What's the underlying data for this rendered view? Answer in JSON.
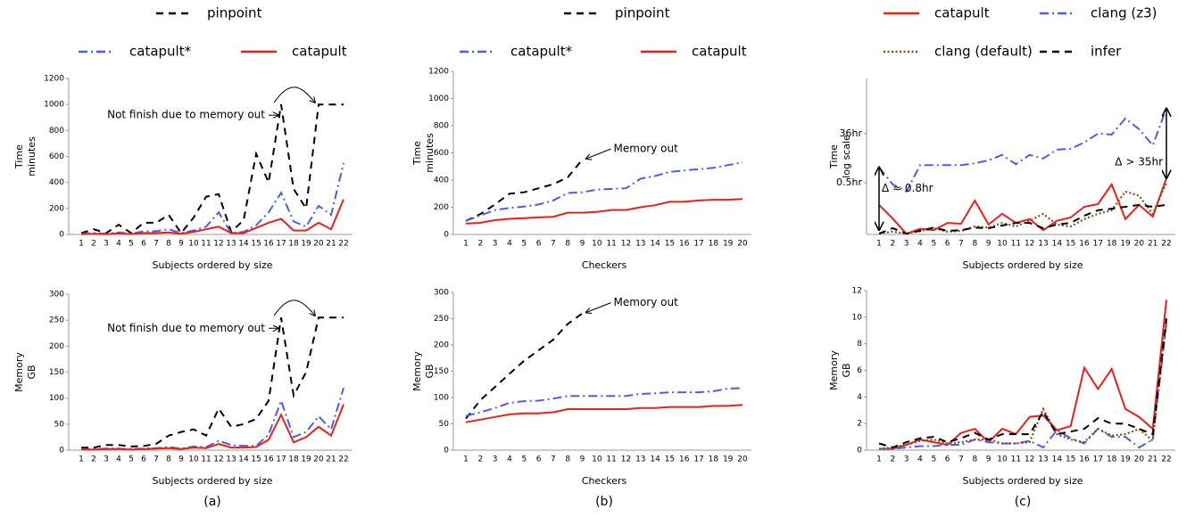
{
  "chart_data": [
    {
      "type": "line",
      "xlabel": "Subjects ordered by size",
      "ylabel": [
        "Time",
        "minutes"
      ],
      "categories": [
        1,
        2,
        3,
        4,
        5,
        6,
        7,
        8,
        9,
        10,
        11,
        12,
        13,
        14,
        15,
        16,
        17,
        18,
        19,
        20,
        21,
        22
      ],
      "ylim": [
        0,
        1200
      ],
      "yticks": [
        0,
        200,
        400,
        600,
        800,
        1000,
        1200
      ],
      "legend": true,
      "annotations": [
        "Not finish due to memory out"
      ],
      "series": [
        {
          "name": "pinpoint",
          "color": "#000000",
          "dash": "dashed",
          "values": [
            10,
            40,
            10,
            75,
            10,
            90,
            90,
            150,
            10,
            130,
            290,
            310,
            20,
            110,
            620,
            400,
            1000,
            350,
            200,
            1000,
            1000,
            1000
          ]
        },
        {
          "name": "catapult*",
          "color": "#4a5ee8",
          "dash": "dashdot",
          "values": [
            5,
            10,
            5,
            15,
            5,
            25,
            25,
            40,
            10,
            30,
            60,
            170,
            10,
            20,
            70,
            170,
            320,
            100,
            60,
            220,
            150,
            550
          ]
        },
        {
          "name": "catapult",
          "color": "#e8201a",
          "dash": "solid",
          "values": [
            2,
            5,
            2,
            8,
            3,
            10,
            10,
            15,
            5,
            20,
            40,
            60,
            10,
            10,
            50,
            90,
            120,
            30,
            30,
            90,
            40,
            270
          ]
        }
      ]
    },
    {
      "type": "line",
      "xlabel": "Subjects ordered by size",
      "ylabel": [
        "Memory",
        "GB"
      ],
      "caption": "(a)",
      "categories": [
        1,
        2,
        3,
        4,
        5,
        6,
        7,
        8,
        9,
        10,
        11,
        12,
        13,
        14,
        15,
        16,
        17,
        18,
        19,
        20,
        21,
        22
      ],
      "ylim": [
        0,
        300
      ],
      "yticks": [
        0,
        50,
        100,
        150,
        200,
        250,
        300
      ],
      "annotations": [
        "Not finish due to memory out"
      ],
      "series": [
        {
          "color": "#000000",
          "dash": "dashed",
          "values": [
            5,
            5,
            10,
            10,
            7,
            8,
            12,
            28,
            35,
            40,
            28,
            80,
            45,
            50,
            60,
            95,
            255,
            105,
            150,
            255,
            255,
            255
          ]
        },
        {
          "color": "#4a5ee8",
          "dash": "dashdot",
          "values": [
            2,
            2,
            3,
            3,
            2,
            3,
            4,
            6,
            3,
            7,
            6,
            18,
            10,
            8,
            8,
            30,
            95,
            25,
            35,
            65,
            40,
            120
          ]
        },
        {
          "color": "#e8201a",
          "dash": "solid",
          "values": [
            1,
            1,
            2,
            2,
            1,
            2,
            3,
            4,
            2,
            5,
            4,
            12,
            5,
            5,
            6,
            20,
            68,
            15,
            25,
            45,
            28,
            88
          ]
        }
      ]
    },
    {
      "type": "line",
      "xlabel": "Checkers",
      "ylabel": [
        "Time",
        "minutes"
      ],
      "categories": [
        1,
        2,
        3,
        4,
        5,
        6,
        7,
        8,
        9,
        10,
        11,
        12,
        13,
        14,
        15,
        16,
        17,
        18,
        19,
        20
      ],
      "ylim": [
        0,
        1200
      ],
      "yticks": [
        0,
        200,
        400,
        600,
        800,
        1000,
        1200
      ],
      "legend": true,
      "annotations": [
        "Memory out"
      ],
      "series": [
        {
          "name": "pinpoint",
          "color": "#000000",
          "dash": "dashed",
          "values": [
            100,
            150,
            220,
            300,
            310,
            340,
            370,
            420,
            550,
            null,
            null,
            null,
            null,
            null,
            null,
            null,
            null,
            null,
            null,
            null
          ]
        },
        {
          "name": "catapult*",
          "color": "#4a5ee8",
          "dash": "dashdot",
          "values": [
            100,
            140,
            180,
            195,
            205,
            220,
            250,
            305,
            310,
            330,
            335,
            340,
            410,
            430,
            460,
            470,
            480,
            490,
            510,
            530
          ]
        },
        {
          "name": "catapult",
          "color": "#e8201a",
          "dash": "solid",
          "values": [
            80,
            85,
            105,
            115,
            120,
            125,
            130,
            160,
            160,
            165,
            180,
            180,
            200,
            215,
            240,
            240,
            250,
            255,
            255,
            260
          ]
        }
      ]
    },
    {
      "type": "line",
      "xlabel": "Checkers",
      "ylabel": [
        "Memory",
        "GB"
      ],
      "caption": "(b)",
      "categories": [
        1,
        2,
        3,
        4,
        5,
        6,
        7,
        8,
        9,
        10,
        11,
        12,
        13,
        14,
        15,
        16,
        17,
        18,
        19,
        20
      ],
      "ylim": [
        0,
        300
      ],
      "yticks": [
        0,
        50,
        100,
        150,
        200,
        250,
        300
      ],
      "annotations": [
        "Memory out"
      ],
      "series": [
        {
          "color": "#000000",
          "dash": "dashed",
          "values": [
            60,
            95,
            120,
            145,
            170,
            190,
            210,
            240,
            260,
            null,
            null,
            null,
            null,
            null,
            null,
            null,
            null,
            null,
            null,
            null
          ]
        },
        {
          "color": "#4a5ee8",
          "dash": "dashdot",
          "values": [
            65,
            72,
            80,
            90,
            93,
            94,
            98,
            103,
            103,
            103,
            103,
            103,
            107,
            108,
            110,
            110,
            110,
            112,
            117,
            118
          ]
        },
        {
          "color": "#e8201a",
          "dash": "solid",
          "values": [
            53,
            58,
            63,
            68,
            70,
            70,
            72,
            78,
            78,
            78,
            78,
            78,
            80,
            80,
            82,
            82,
            82,
            84,
            84,
            86
          ]
        }
      ]
    },
    {
      "type": "line",
      "xlabel": "Subjects ordered by size",
      "ylabel": [
        "Time",
        "log scale"
      ],
      "log": true,
      "categories": [
        1,
        2,
        3,
        4,
        5,
        6,
        7,
        8,
        9,
        10,
        11,
        12,
        13,
        14,
        15,
        16,
        17,
        18,
        19,
        20,
        21,
        22
      ],
      "ylim": [
        0.0055,
        4400
      ],
      "yticks": [
        {
          "value": 0.5,
          "label": "0.5hr"
        },
        {
          "value": 36,
          "label": "36hr"
        }
      ],
      "legend": true,
      "annotations": [
        "Δ ≈ 0.8hr",
        "Δ > 35hr"
      ],
      "series": [
        {
          "name": "catapult",
          "color": "#e8201a",
          "dash": "solid",
          "values": [
            0.072,
            0.022,
            0.0058,
            0.009,
            0.008,
            0.015,
            0.014,
            0.105,
            0.013,
            0.033,
            0.015,
            0.021,
            0.008,
            0.018,
            0.024,
            0.061,
            0.077,
            0.43,
            0.021,
            0.072,
            0.026,
            0.74
          ]
        },
        {
          "name": "clang (z3)",
          "color": "#4a5ee8",
          "dash": "dashdot",
          "values": [
            1.9,
            0.43,
            0.23,
            2.3,
            2.3,
            2.3,
            2.3,
            2.7,
            3.5,
            5.6,
            2.5,
            5.6,
            4.1,
            8.9,
            9.6,
            16.7,
            36,
            33,
            135,
            53,
            13,
            320
          ]
        },
        {
          "name": "clang (default)",
          "color": "#8b4a1c",
          "dash": "dotted",
          "values": [
            0.0059,
            0.007,
            0.0059,
            0.0075,
            0.0095,
            0.007,
            0.0075,
            0.011,
            0.01,
            0.015,
            0.011,
            0.018,
            0.033,
            0.013,
            0.011,
            0.021,
            0.033,
            0.045,
            0.23,
            0.16,
            0.033,
            0.5
          ]
        },
        {
          "name": "infer",
          "color": "#000000",
          "dash": "dashed",
          "values": [
            0.0059,
            0.0095,
            0.0059,
            0.0075,
            0.01,
            0.0075,
            0.008,
            0.01,
            0.0095,
            0.012,
            0.015,
            0.015,
            0.0095,
            0.013,
            0.015,
            0.028,
            0.045,
            0.052,
            0.061,
            0.072,
            0.061,
            0.072
          ]
        }
      ]
    },
    {
      "type": "line",
      "xlabel": "Subjects ordered by size",
      "ylabel": [
        "Memory",
        "GB"
      ],
      "caption": "(c)",
      "categories": [
        1,
        2,
        3,
        4,
        5,
        6,
        7,
        8,
        9,
        10,
        11,
        12,
        13,
        14,
        15,
        16,
        17,
        18,
        19,
        20,
        21,
        22
      ],
      "ylim": [
        0,
        12
      ],
      "yticks": [
        0,
        2,
        4,
        6,
        8,
        10,
        12
      ],
      "series": [
        {
          "color": "#e8201a",
          "dash": "solid",
          "values": [
            0.1,
            0.1,
            0.4,
            0.8,
            0.6,
            0.4,
            1.3,
            1.6,
            0.6,
            1.6,
            1.2,
            2.5,
            2.6,
            1.5,
            1.8,
            6.2,
            4.6,
            6.1,
            3.1,
            2.5,
            1.6,
            11.3
          ]
        },
        {
          "color": "#4a5ee8",
          "dash": "dashdot",
          "values": [
            0.1,
            0.1,
            0.2,
            0.3,
            0.3,
            0.4,
            0.4,
            0.8,
            0.6,
            0.5,
            0.5,
            0.7,
            0.2,
            1.5,
            0.9,
            0.5,
            1.6,
            1.0,
            1.0,
            0.2,
            0.8,
            9.5
          ]
        },
        {
          "color": "#8b4a1c",
          "dash": "dotted",
          "values": [
            0.1,
            0.2,
            0.4,
            0.7,
            0.8,
            0.5,
            0.6,
            0.8,
            0.8,
            0.5,
            0.5,
            0.6,
            3.1,
            1.2,
            0.8,
            0.6,
            1.6,
            1.1,
            1.2,
            1.6,
            0.7,
            9.8
          ]
        },
        {
          "color": "#000000",
          "dash": "dashed",
          "values": [
            0.5,
            0.2,
            0.6,
            0.9,
            1.0,
            0.6,
            0.9,
            1.3,
            0.8,
            1.2,
            1.2,
            1.2,
            2.9,
            1.2,
            1.4,
            1.6,
            2.4,
            2.0,
            2.0,
            1.6,
            1.2,
            9.9
          ]
        }
      ]
    }
  ]
}
